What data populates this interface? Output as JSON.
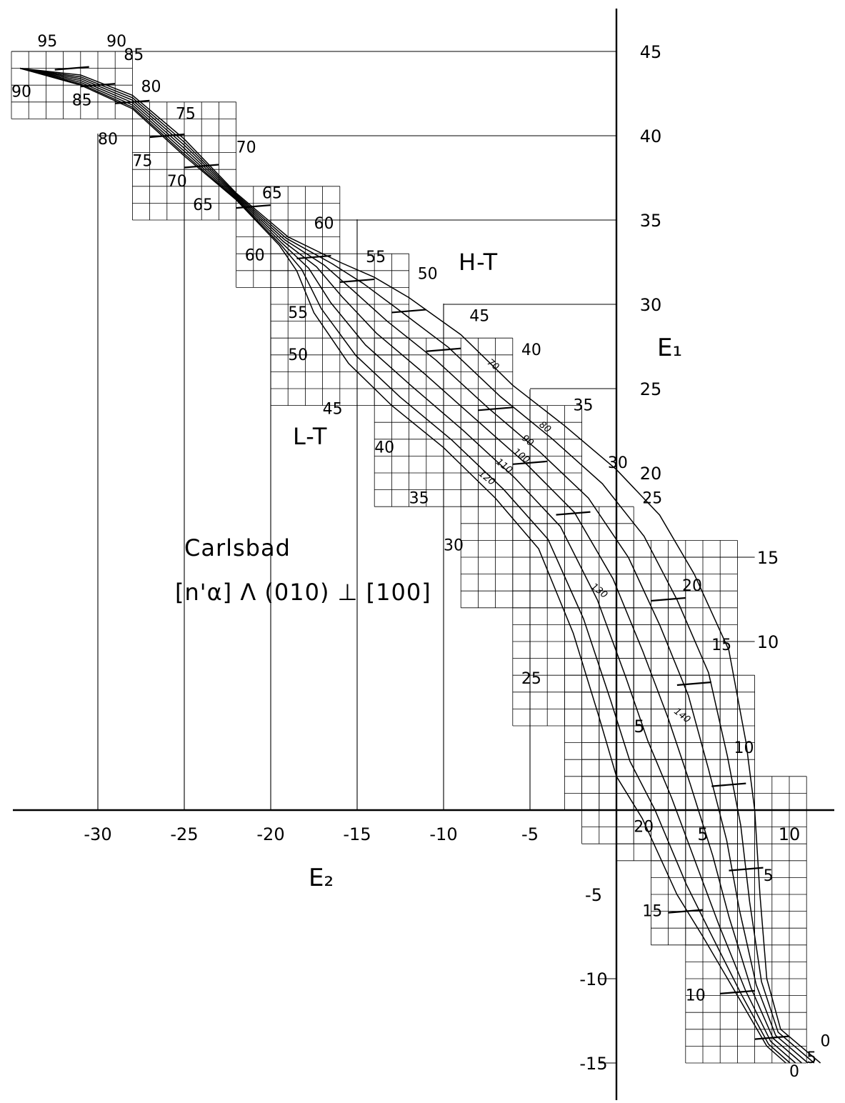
{
  "chart_data": {
    "type": "line",
    "title": "Carlsbad",
    "subtitle": "[n'α] Λ (010) ⊥ [100]",
    "xlabel": "E₂",
    "ylabel": "E₁",
    "xlim": [
      -35,
      12.5
    ],
    "ylim": [
      -17,
      48
    ],
    "x_ticks": [
      -30,
      -25,
      -20,
      -15,
      -10,
      -5,
      5,
      10
    ],
    "y_ticks": [
      -15,
      -10,
      -5,
      5,
      10,
      15,
      20,
      25,
      30,
      35,
      40,
      45
    ],
    "grid_lines_x": [
      -30,
      -25,
      -20,
      -15,
      -10,
      -5
    ],
    "grid_lines_y": [
      15,
      10,
      40,
      45,
      35,
      30,
      25,
      -10,
      -15
    ],
    "series": [
      {
        "name": "H-T",
        "points": [
          [
            -34.5,
            44
          ],
          [
            -31,
            43.6
          ],
          [
            -28,
            42.4
          ],
          [
            -25,
            39.8
          ],
          [
            -22,
            36.6
          ],
          [
            -19,
            34
          ],
          [
            -16,
            32.5
          ],
          [
            -14,
            31.6
          ],
          [
            -12,
            30.4
          ],
          [
            -9,
            28.2
          ],
          [
            -6,
            25.2
          ],
          [
            -3,
            22.8
          ],
          [
            0,
            20.2
          ],
          [
            2.5,
            17.5
          ],
          [
            4.5,
            14
          ],
          [
            6.5,
            9.5
          ],
          [
            7.5,
            4
          ],
          [
            8,
            0
          ],
          [
            8.3,
            -5
          ],
          [
            8.7,
            -10
          ],
          [
            9.5,
            -13
          ],
          [
            11.8,
            -15
          ]
        ]
      },
      {
        "name": "L-T",
        "points": [
          [
            -34.5,
            44
          ],
          [
            -31,
            43
          ],
          [
            -28,
            41.6
          ],
          [
            -25,
            38.8
          ],
          [
            -22,
            36.2
          ],
          [
            -19.5,
            33.5
          ],
          [
            -18.5,
            32
          ],
          [
            -17.5,
            29.5
          ],
          [
            -15.5,
            26.5
          ],
          [
            -13,
            24
          ],
          [
            -10,
            21.5
          ],
          [
            -7,
            18.5
          ],
          [
            -4.5,
            15.5
          ],
          [
            -2.5,
            10.5
          ],
          [
            -1,
            5.5
          ],
          [
            0,
            2
          ],
          [
            1.5,
            -0.5
          ],
          [
            3.5,
            -5
          ],
          [
            5,
            -7.5
          ],
          [
            7,
            -11
          ],
          [
            8.7,
            -14
          ],
          [
            9.8,
            -15
          ]
        ]
      }
    ],
    "series_labels": [
      "H-T",
      "L-T"
    ],
    "annotations": {
      "ht_angles": [
        "95",
        "90",
        "85",
        "80",
        "75",
        "70",
        "65",
        "60",
        "55",
        "50",
        "45",
        "40",
        "35",
        "30",
        "25",
        "20",
        "15",
        "10",
        "5",
        "0"
      ],
      "lt_angles": [
        "90",
        "85",
        "80",
        "75",
        "70",
        "65",
        "60",
        "55",
        "50",
        "45",
        "40",
        "35",
        "30",
        "25",
        "20",
        "15",
        "10",
        "5",
        "0"
      ],
      "an_content": [
        "70",
        "80",
        "90",
        "100",
        "110",
        "120",
        "130",
        "140"
      ]
    }
  }
}
